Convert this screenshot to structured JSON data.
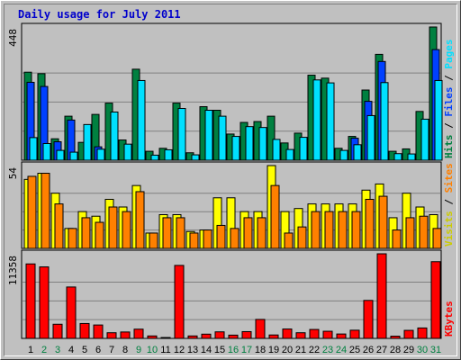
{
  "title": "Daily usage for July 2011",
  "colors": {
    "background": "#c0c0c0",
    "hits": "#008040",
    "files": "#0040ff",
    "pages": "#00e0ff",
    "visits": "#ffff00",
    "sites": "#ff8000",
    "kbytes": "#ff0000",
    "weekday_label": "#000000",
    "weekend_label": "#008040"
  },
  "legend": {
    "top": [
      {
        "text": "Hits",
        "color": "#008040"
      },
      {
        "text": "Files",
        "color": "#0040ff"
      },
      {
        "text": "Pages",
        "color": "#00e0ff"
      }
    ],
    "mid": [
      {
        "text": "Visits",
        "color": "#cccc00"
      },
      {
        "text": "Sites",
        "color": "#ff8000"
      }
    ],
    "bottom": [
      {
        "text": "KBytes",
        "color": "#ff0000"
      }
    ]
  },
  "chart_data": [
    {
      "type": "bar",
      "panel": "hits-files-pages",
      "ymax_label": "448",
      "ylim": [
        0,
        448
      ],
      "categories": [
        "1",
        "2",
        "3",
        "4",
        "5",
        "6",
        "7",
        "8",
        "9",
        "10",
        "11",
        "12",
        "13",
        "14",
        "15",
        "16",
        "17",
        "18",
        "19",
        "20",
        "21",
        "22",
        "23",
        "24",
        "25",
        "26",
        "27",
        "28",
        "29",
        "30",
        "31"
      ],
      "weekend": [
        "2",
        "3",
        "9",
        "10",
        "16",
        "17",
        "23",
        "24",
        "30",
        "31"
      ],
      "series": [
        {
          "name": "Hits",
          "values": [
            296,
            291,
            72,
            148,
            60,
            154,
            192,
            68,
            306,
            30,
            40,
            192,
            25,
            180,
            168,
            88,
            127,
            130,
            148,
            58,
            91,
            286,
            276,
            40,
            80,
            236,
            356,
            30,
            38,
            164,
            448
          ]
        },
        {
          "name": "Files",
          "values": [
            262,
            248,
            62,
            135,
            0,
            45,
            0,
            0,
            0,
            0,
            0,
            0,
            0,
            0,
            0,
            0,
            0,
            0,
            0,
            0,
            0,
            0,
            0,
            0,
            74,
            198,
            332,
            0,
            0,
            0,
            372
          ]
        },
        {
          "name": "Pages",
          "values": [
            76,
            56,
            33,
            27,
            120,
            37,
            162,
            54,
            268,
            17,
            35,
            174,
            18,
            168,
            148,
            80,
            113,
            110,
            70,
            36,
            77,
            270,
            260,
            33,
            52,
            150,
            261,
            22,
            21,
            138,
            268
          ]
        }
      ]
    },
    {
      "type": "bar",
      "panel": "visits-sites",
      "ymax_label": "54",
      "ylim": [
        0,
        54
      ],
      "categories": [
        "1",
        "2",
        "3",
        "4",
        "5",
        "6",
        "7",
        "8",
        "9",
        "10",
        "11",
        "12",
        "13",
        "14",
        "15",
        "16",
        "17",
        "18",
        "19",
        "20",
        "21",
        "22",
        "23",
        "24",
        "25",
        "26",
        "27",
        "28",
        "29",
        "30",
        "31"
      ],
      "series": [
        {
          "name": "Visits",
          "values": [
            45,
            49,
            36,
            13,
            24,
            21,
            32,
            27,
            41,
            10,
            22,
            22,
            11,
            12,
            33,
            33,
            24,
            24,
            54,
            24,
            26,
            29,
            29,
            29,
            29,
            38,
            42,
            20,
            36,
            27,
            22
          ]
        },
        {
          "name": "Sites",
          "values": [
            47,
            49,
            29,
            13,
            20,
            17,
            27,
            24,
            37,
            10,
            20,
            20,
            10,
            12,
            15,
            13,
            20,
            20,
            41,
            10,
            14,
            24,
            24,
            24,
            24,
            32,
            34,
            12,
            20,
            21,
            13
          ]
        }
      ]
    },
    {
      "type": "bar",
      "panel": "kbytes",
      "ymax_label": "11358",
      "ylim": [
        0,
        11358
      ],
      "categories": [
        "1",
        "2",
        "3",
        "4",
        "5",
        "6",
        "7",
        "8",
        "9",
        "10",
        "11",
        "12",
        "13",
        "14",
        "15",
        "16",
        "17",
        "18",
        "19",
        "20",
        "21",
        "22",
        "23",
        "24",
        "25",
        "26",
        "27",
        "28",
        "29",
        "30",
        "31"
      ],
      "series": [
        {
          "name": "KBytes",
          "values": [
            10000,
            9600,
            1900,
            6900,
            2000,
            1800,
            760,
            860,
            1240,
            330,
            100,
            9800,
            330,
            570,
            880,
            440,
            910,
            2550,
            460,
            1260,
            760,
            1200,
            960,
            590,
            1100,
            5100,
            11358,
            300,
            1080,
            1400,
            10300
          ]
        }
      ]
    }
  ]
}
